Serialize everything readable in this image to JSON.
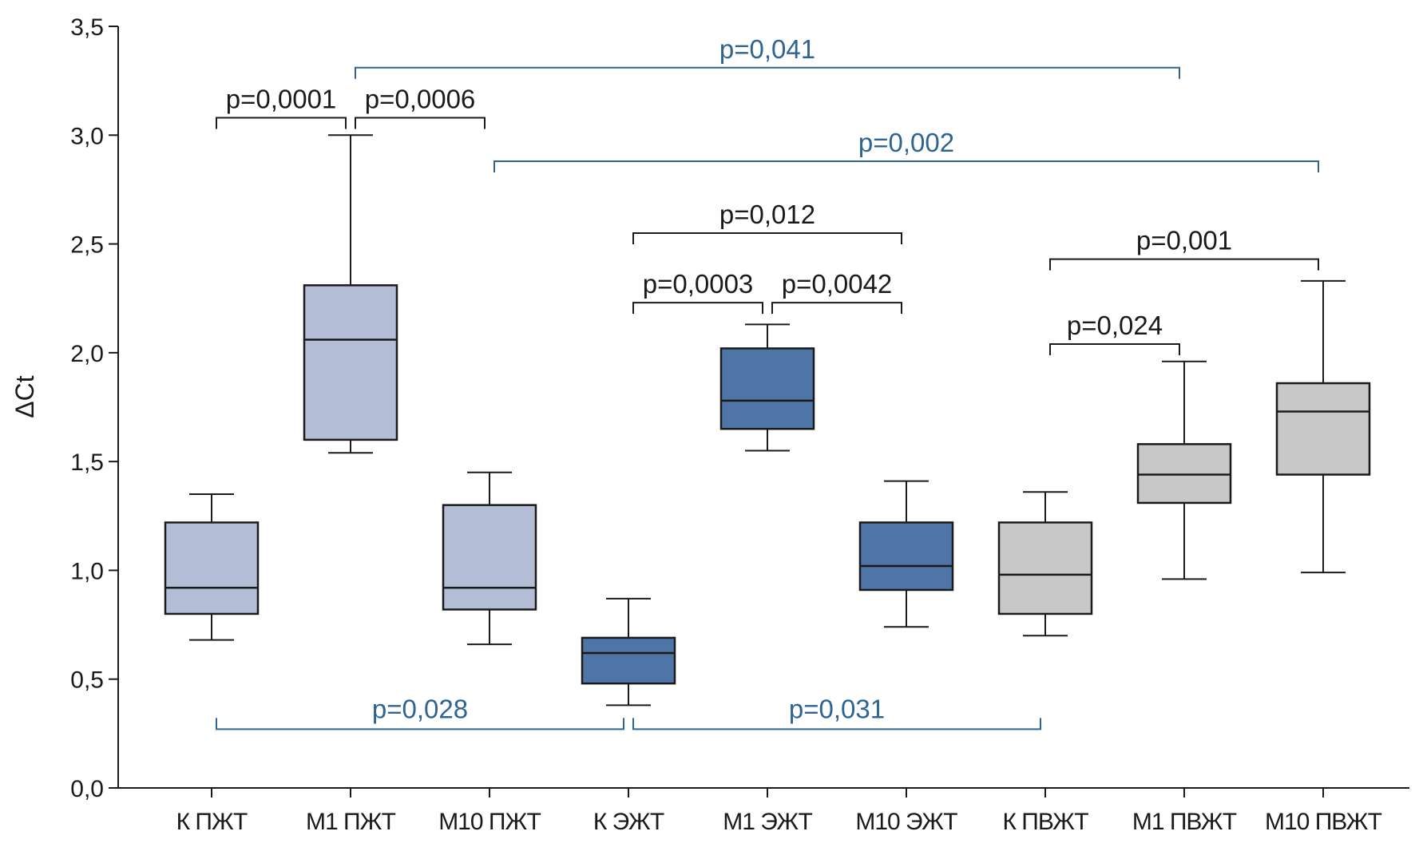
{
  "chart_data": {
    "type": "boxplot",
    "ylabel": "ΔCt",
    "ylim": [
      0,
      3.5
    ],
    "yticks": [
      0,
      0.5,
      1.0,
      1.5,
      2.0,
      2.5,
      3.0,
      3.5
    ],
    "ytick_labels": [
      "0,0",
      "0,5",
      "1,0",
      "1,5",
      "2,0",
      "2,5",
      "3,0",
      "3,5"
    ],
    "grid": false,
    "categories": [
      "К ПЖТ",
      "М1 ПЖТ",
      "М10 ПЖТ",
      "К ЭЖТ",
      "М1 ЭЖТ",
      "М10 ЭЖТ",
      "К ПВЖТ",
      "М1 ПВЖТ",
      "М10 ПВЖТ"
    ],
    "boxes": [
      {
        "label": "К ПЖТ",
        "min": 0.68,
        "q1": 0.8,
        "median": 0.92,
        "q3": 1.22,
        "max": 1.35,
        "color": "#b3bed6"
      },
      {
        "label": "М1 ПЖТ",
        "min": 1.54,
        "q1": 1.6,
        "median": 2.06,
        "q3": 2.31,
        "max": 3.0,
        "color": "#b3bed6"
      },
      {
        "label": "М10 ПЖТ",
        "min": 0.66,
        "q1": 0.82,
        "median": 0.92,
        "q3": 1.3,
        "max": 1.45,
        "color": "#b3bed6"
      },
      {
        "label": "К ЭЖТ",
        "min": 0.38,
        "q1": 0.48,
        "median": 0.62,
        "q3": 0.69,
        "max": 0.87,
        "color": "#4f74a6"
      },
      {
        "label": "М1 ЭЖТ",
        "min": 1.55,
        "q1": 1.65,
        "median": 1.78,
        "q3": 2.02,
        "max": 2.13,
        "color": "#4f74a6"
      },
      {
        "label": "М10 ЭЖТ",
        "min": 0.74,
        "q1": 0.91,
        "median": 1.02,
        "q3": 1.22,
        "max": 1.41,
        "color": "#4f74a6"
      },
      {
        "label": "К ПВЖТ",
        "min": 0.7,
        "q1": 0.8,
        "median": 0.98,
        "q3": 1.22,
        "max": 1.36,
        "color": "#c8c8c8"
      },
      {
        "label": "М1 ПВЖТ",
        "min": 0.96,
        "q1": 1.31,
        "median": 1.44,
        "q3": 1.58,
        "max": 1.96,
        "color": "#c8c8c8"
      },
      {
        "label": "М10 ПВЖТ",
        "min": 0.99,
        "q1": 1.44,
        "median": 1.73,
        "q3": 1.86,
        "max": 2.33,
        "color": "#c8c8c8"
      }
    ],
    "annotations": [
      {
        "text": "p=0,0001",
        "from": 0,
        "to": 1,
        "level": 3.08,
        "dir": "down",
        "color": "#1a1a1a"
      },
      {
        "text": "p=0,0006",
        "from": 1,
        "to": 2,
        "level": 3.08,
        "dir": "down",
        "color": "#1a1a1a"
      },
      {
        "text": "p=0,041",
        "from": 1,
        "to": 7,
        "level": 3.31,
        "dir": "down",
        "color": "#2e6494"
      },
      {
        "text": "p=0,002",
        "from": 2,
        "to": 8,
        "level": 2.88,
        "dir": "down",
        "color": "#2e6494"
      },
      {
        "text": "p=0,012",
        "from": 3,
        "to": 5,
        "level": 2.55,
        "dir": "down",
        "color": "#1a1a1a"
      },
      {
        "text": "p=0,0003",
        "from": 3,
        "to": 4,
        "level": 2.23,
        "dir": "down",
        "color": "#1a1a1a"
      },
      {
        "text": "p=0,0042",
        "from": 4,
        "to": 5,
        "level": 2.23,
        "dir": "down",
        "color": "#1a1a1a"
      },
      {
        "text": "p=0,001",
        "from": 6,
        "to": 8,
        "level": 2.43,
        "dir": "down",
        "color": "#1a1a1a"
      },
      {
        "text": "p=0,024",
        "from": 6,
        "to": 7,
        "level": 2.04,
        "dir": "down",
        "color": "#1a1a1a"
      },
      {
        "text": "p=0,028",
        "from": 0,
        "to": 3,
        "level": 0.27,
        "dir": "up",
        "color": "#2e6494"
      },
      {
        "text": "p=0,031",
        "from": 3,
        "to": 6,
        "level": 0.27,
        "dir": "up",
        "color": "#2e6494"
      }
    ]
  }
}
